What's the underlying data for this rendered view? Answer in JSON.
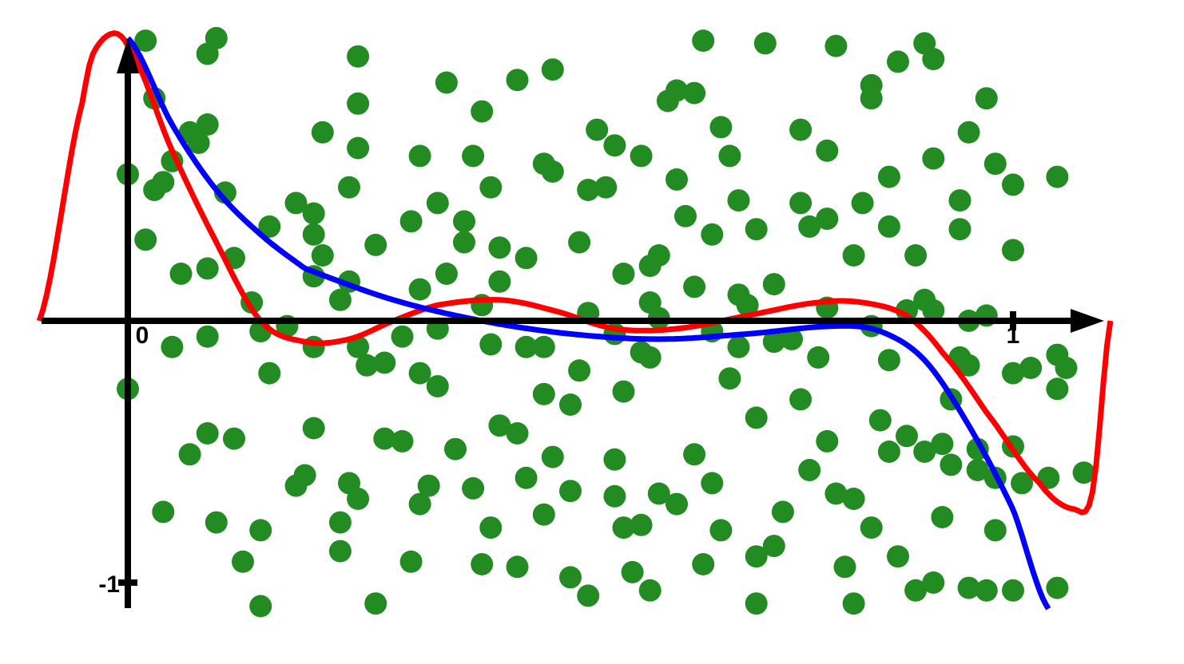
{
  "chart_data": {
    "type": "scatter",
    "title": "",
    "xlabel": "",
    "ylabel": "",
    "xlim": [
      -0.1,
      1.11
    ],
    "ylim": [
      -1.1,
      1.1
    ],
    "grid": false,
    "x_ticks": [
      {
        "value": 0,
        "label": "0"
      },
      {
        "value": 1,
        "label": "1"
      }
    ],
    "y_ticks": [
      {
        "value": -1,
        "label": "-1"
      }
    ],
    "colors": {
      "points": "#228B22",
      "fit_high_degree": "#ff0000",
      "fit_low_degree": "#0000ff",
      "axes": "#000000"
    },
    "series": [
      {
        "type": "scatter",
        "points": [
          [
            0.02,
            1.07
          ],
          [
            0.1,
            1.08
          ],
          [
            0.09,
            1.02
          ],
          [
            0.26,
            1.01
          ],
          [
            0.65,
            1.07
          ],
          [
            0.48,
            0.96
          ],
          [
            0.72,
            1.06
          ],
          [
            0.8,
            1.05
          ],
          [
            0.91,
            1.0
          ],
          [
            0.9,
            1.06
          ],
          [
            0.87,
            0.99
          ],
          [
            0.03,
            0.85
          ],
          [
            0.09,
            0.75
          ],
          [
            0.26,
            0.83
          ],
          [
            0.4,
            0.8
          ],
          [
            0.64,
            0.87
          ],
          [
            0.62,
            0.88
          ],
          [
            0.61,
            0.84
          ],
          [
            0.84,
            0.85
          ],
          [
            0.97,
            0.85
          ],
          [
            0.0,
            0.56
          ],
          [
            0.03,
            0.5
          ],
          [
            0.05,
            0.61
          ],
          [
            0.07,
            0.72
          ],
          [
            0.11,
            0.49
          ],
          [
            0.19,
            0.45
          ],
          [
            0.21,
            0.41
          ],
          [
            0.25,
            0.51
          ],
          [
            0.33,
            0.63
          ],
          [
            0.41,
            0.51
          ],
          [
            0.47,
            0.6
          ],
          [
            0.48,
            0.57
          ],
          [
            0.52,
            0.5
          ],
          [
            0.55,
            0.67
          ],
          [
            0.62,
            0.54
          ],
          [
            0.63,
            0.4
          ],
          [
            0.68,
            0.63
          ],
          [
            0.76,
            0.45
          ],
          [
            0.79,
            0.65
          ],
          [
            0.83,
            0.45
          ],
          [
            0.86,
            0.55
          ],
          [
            0.91,
            0.62
          ],
          [
            0.94,
            0.46
          ],
          [
            1.0,
            0.52
          ],
          [
            1.05,
            0.55
          ],
          [
            1.0,
            0.27
          ],
          [
            0.02,
            0.31
          ],
          [
            0.12,
            0.24
          ],
          [
            0.16,
            0.36
          ],
          [
            0.21,
            0.33
          ],
          [
            0.35,
            0.45
          ],
          [
            0.38,
            0.3
          ],
          [
            0.42,
            0.28
          ],
          [
            0.51,
            0.3
          ],
          [
            0.56,
            0.18
          ],
          [
            0.6,
            0.25
          ],
          [
            0.66,
            0.33
          ],
          [
            0.71,
            0.35
          ],
          [
            0.82,
            0.25
          ],
          [
            0.94,
            0.35
          ],
          [
            0.14,
            0.07
          ],
          [
            0.21,
            0.17
          ],
          [
            0.25,
            0.15
          ],
          [
            0.33,
            0.12
          ],
          [
            0.4,
            0.06
          ],
          [
            0.52,
            0.03
          ],
          [
            0.59,
            0.07
          ],
          [
            0.64,
            0.13
          ],
          [
            0.7,
            0.06
          ],
          [
            0.73,
            0.14
          ],
          [
            0.79,
            0.05
          ],
          [
            0.88,
            0.04
          ],
          [
            0.9,
            0.08
          ],
          [
            0.95,
            0.0
          ],
          [
            0.09,
            -0.06
          ],
          [
            0.15,
            -0.04
          ],
          [
            0.21,
            -0.1
          ],
          [
            0.29,
            -0.16
          ],
          [
            0.35,
            -0.03
          ],
          [
            0.41,
            -0.09
          ],
          [
            0.45,
            -0.1
          ],
          [
            0.55,
            -0.05
          ],
          [
            0.58,
            -0.12
          ],
          [
            0.59,
            -0.14
          ],
          [
            0.69,
            -0.1
          ],
          [
            0.73,
            -0.08
          ],
          [
            0.78,
            -0.14
          ],
          [
            0.86,
            -0.15
          ],
          [
            0.95,
            -0.17
          ],
          [
            0.05,
            -0.1
          ],
          [
            0.16,
            -0.2
          ],
          [
            0.33,
            -0.2
          ],
          [
            0.35,
            -0.25
          ],
          [
            0.47,
            -0.28
          ],
          [
            0.56,
            -0.27
          ],
          [
            0.71,
            -0.37
          ],
          [
            0.85,
            -0.38
          ],
          [
            0.93,
            -0.3
          ],
          [
            -0.0,
            -0.26
          ],
          [
            0.21,
            -0.41
          ],
          [
            0.29,
            -0.45
          ],
          [
            0.37,
            -0.49
          ],
          [
            0.44,
            -0.43
          ],
          [
            0.48,
            -0.52
          ],
          [
            0.55,
            -0.53
          ],
          [
            0.64,
            -0.51
          ],
          [
            0.79,
            -0.46
          ],
          [
            0.88,
            -0.44
          ],
          [
            0.92,
            -0.47
          ],
          [
            0.96,
            -0.49
          ],
          [
            0.07,
            -0.51
          ],
          [
            0.2,
            -0.59
          ],
          [
            0.25,
            -0.62
          ],
          [
            0.34,
            -0.63
          ],
          [
            0.39,
            -0.64
          ],
          [
            0.45,
            -0.6
          ],
          [
            0.5,
            -0.65
          ],
          [
            0.55,
            -0.67
          ],
          [
            0.6,
            -0.66
          ],
          [
            0.66,
            -0.62
          ],
          [
            0.74,
            -0.73
          ],
          [
            0.82,
            -0.68
          ],
          [
            0.04,
            -0.73
          ],
          [
            0.1,
            -0.77
          ],
          [
            0.15,
            -0.8
          ],
          [
            0.24,
            -0.88
          ],
          [
            0.32,
            -0.92
          ],
          [
            0.4,
            -0.93
          ],
          [
            0.44,
            -0.94
          ],
          [
            0.5,
            -0.98
          ],
          [
            0.57,
            -0.96
          ],
          [
            0.65,
            -0.93
          ],
          [
            0.71,
            -0.9
          ],
          [
            0.81,
            -0.94
          ],
          [
            0.91,
            -1.0
          ],
          [
            0.95,
            -1.02
          ],
          [
            0.97,
            -1.03
          ],
          [
            0.15,
            -1.09
          ],
          [
            0.28,
            -1.08
          ],
          [
            0.52,
            -1.05
          ],
          [
            0.59,
            -1.03
          ],
          [
            0.71,
            -1.08
          ],
          [
            0.82,
            -1.08
          ],
          [
            0.89,
            -1.03
          ],
          [
            1.0,
            -1.03
          ],
          [
            1.05,
            -1.02
          ],
          [
            1.08,
            -0.58
          ],
          [
            1.04,
            -0.6
          ],
          [
            1.01,
            -0.62
          ],
          [
            0.98,
            -0.8
          ],
          [
            0.93,
            -0.55
          ],
          [
            0.86,
            -0.5
          ],
          [
            0.76,
            -0.3
          ],
          [
            0.68,
            -0.22
          ],
          [
            0.5,
            -0.32
          ],
          [
            0.31,
            -0.46
          ],
          [
            0.24,
            -0.77
          ],
          [
            0.13,
            -0.92
          ],
          [
            0.09,
            -0.43
          ],
          [
            0.12,
            -0.45
          ],
          [
            0.18,
            -0.02
          ],
          [
            0.27,
            -0.17
          ],
          [
            0.42,
            -0.4
          ],
          [
            0.58,
            -0.78
          ],
          [
            0.62,
            -0.7
          ],
          [
            0.73,
            -0.86
          ],
          [
            0.8,
            -0.66
          ],
          [
            0.87,
            -0.9
          ],
          [
            0.9,
            -0.5
          ],
          [
            0.96,
            -0.57
          ],
          [
            1.0,
            -0.48
          ],
          [
            1.02,
            -0.18
          ],
          [
            1.05,
            -0.13
          ],
          [
            0.94,
            -0.14
          ],
          [
            0.97,
            0.02
          ],
          [
            0.66,
            -0.04
          ],
          [
            0.69,
            0.1
          ],
          [
            0.36,
            0.18
          ],
          [
            0.28,
            0.29
          ],
          [
            0.22,
            0.25
          ],
          [
            0.09,
            0.2
          ],
          [
            0.06,
            0.18
          ],
          [
            0.04,
            0.53
          ],
          [
            0.08,
            0.68
          ],
          [
            0.22,
            0.72
          ],
          [
            0.26,
            0.66
          ],
          [
            0.36,
            0.91
          ],
          [
            0.39,
            0.63
          ],
          [
            0.44,
            0.92
          ],
          [
            0.53,
            0.73
          ],
          [
            0.58,
            0.63
          ],
          [
            0.67,
            0.74
          ],
          [
            0.76,
            0.73
          ],
          [
            0.84,
            0.9
          ],
          [
            0.95,
            0.72
          ],
          [
            0.98,
            0.6
          ],
          [
            0.89,
            0.25
          ],
          [
            0.86,
            0.36
          ],
          [
            0.79,
            0.39
          ],
          [
            0.77,
            0.36
          ],
          [
            0.69,
            0.46
          ],
          [
            0.59,
            0.21
          ],
          [
            0.54,
            0.51
          ],
          [
            0.45,
            0.24
          ],
          [
            0.42,
            0.15
          ],
          [
            0.38,
            0.38
          ],
          [
            0.32,
            0.38
          ],
          [
            0.24,
            0.08
          ],
          [
            0.26,
            -0.1
          ],
          [
            0.31,
            -0.06
          ],
          [
            0.47,
            -0.1
          ],
          [
            0.51,
            -0.19
          ],
          [
            0.6,
            0.01
          ],
          [
            0.75,
            -0.07
          ],
          [
            0.84,
            -0.02
          ],
          [
            0.91,
            0.04
          ],
          [
            1.0,
            -0.2
          ],
          [
            1.06,
            -0.18
          ],
          [
            1.05,
            -0.26
          ],
          [
            0.98,
            -0.6
          ],
          [
            0.92,
            -0.75
          ],
          [
            0.84,
            -0.79
          ],
          [
            0.77,
            -0.57
          ],
          [
            0.67,
            -0.8
          ],
          [
            0.56,
            -0.79
          ],
          [
            0.47,
            -0.74
          ],
          [
            0.41,
            -0.79
          ],
          [
            0.33,
            -0.7
          ],
          [
            0.26,
            -0.68
          ],
          [
            0.19,
            -0.63
          ]
        ]
      },
      {
        "type": "line",
        "name": "",
        "color": "#ff0000",
        "curve": "high_degree_fit",
        "x_range": [
          -0.1,
          1.11
        ]
      },
      {
        "type": "line",
        "name": "",
        "color": "#0000ff",
        "curve": "low_degree_fit",
        "x_range": [
          0.0,
          1.04
        ]
      }
    ]
  }
}
